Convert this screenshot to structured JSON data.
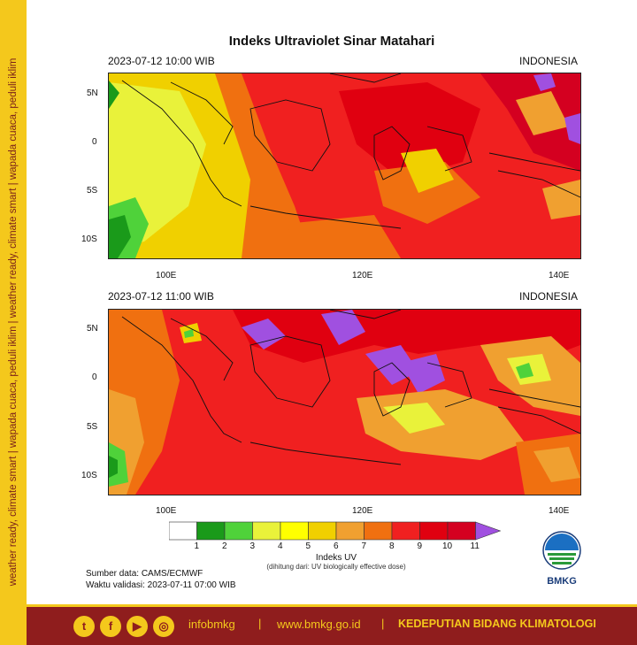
{
  "side_text": "weather ready, climate smart | wapada cuaca, peduli iklim | weather ready, climate smart | wapada cuaca, peduli iklim",
  "title": "Indeks Ultraviolet Sinar Matahari",
  "panels": [
    {
      "time": "2023-07-12  10:00 WIB",
      "region": "INDONESIA"
    },
    {
      "time": "2023-07-12  11:00 WIB",
      "region": "INDONESIA"
    }
  ],
  "axes": {
    "lat_ticks": [
      "5N",
      "0",
      "5S",
      "10S"
    ],
    "lon_ticks": [
      "100E",
      "120E",
      "140E"
    ]
  },
  "colorbar": {
    "title": "Indeks UV",
    "subtitle": "(dihitung dari: UV biologically effective dose)",
    "labels": [
      "1",
      "2",
      "3",
      "4",
      "5",
      "6",
      "7",
      "8",
      "9",
      "10",
      "11"
    ],
    "colors": [
      "#ffffff",
      "#1a9a1a",
      "#4fd23a",
      "#e9f23a",
      "#ffff00",
      "#f0d000",
      "#f0a030",
      "#f07010",
      "#f02020",
      "#e00010",
      "#d40020",
      "#a050e0"
    ]
  },
  "source": "Sumber data: CAMS/ECMWF",
  "validity": "Waktu validasi: 2023-07-11 07:00 WIB",
  "logo": {
    "text": "BMKG"
  },
  "footer": {
    "social_icons": [
      "twitter-icon",
      "facebook-icon",
      "youtube-icon",
      "instagram-icon"
    ],
    "handle": "infobmkg",
    "website": "www.bmkg.go.id",
    "unit": "KEDEPUTIAN BIDANG KLIMATOLOGI",
    "separator": "|"
  }
}
